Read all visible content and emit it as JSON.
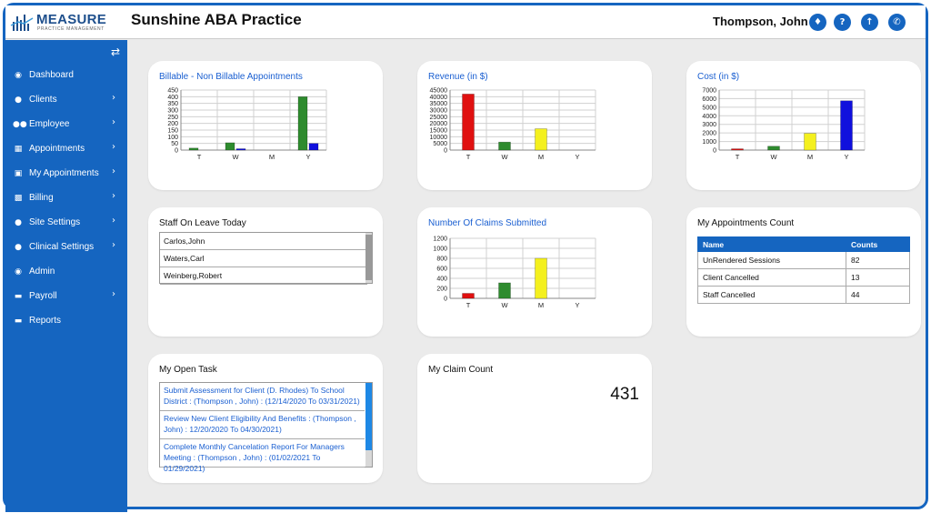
{
  "app": {
    "logo_text": "MEASURE",
    "logo_subtext": "PRACTICE MANAGEMENT",
    "title": "Sunshine ABA Practice",
    "user_name": "Thompson, John",
    "header_icons": [
      "bell-icon",
      "help-icon",
      "upload-icon",
      "phone-icon"
    ]
  },
  "sidebar": {
    "items": [
      {
        "label": "Dashboard",
        "icon": "dashboard-icon",
        "has_submenu": false
      },
      {
        "label": "Clients",
        "icon": "user-icon",
        "has_submenu": true
      },
      {
        "label": "Employee",
        "icon": "users-icon",
        "has_submenu": true
      },
      {
        "label": "Appointments",
        "icon": "calendar-icon",
        "has_submenu": true
      },
      {
        "label": "My Appointments",
        "icon": "building-icon",
        "has_submenu": true
      },
      {
        "label": "Billing",
        "icon": "money-icon",
        "has_submenu": true
      },
      {
        "label": "Site Settings",
        "icon": "user-icon",
        "has_submenu": true
      },
      {
        "label": "Clinical Settings",
        "icon": "user-icon",
        "has_submenu": true
      },
      {
        "label": "Admin",
        "icon": "user-circle-icon",
        "has_submenu": false
      },
      {
        "label": "Payroll",
        "icon": "card-icon",
        "has_submenu": true
      },
      {
        "label": "Reports",
        "icon": "card-icon",
        "has_submenu": false
      }
    ]
  },
  "cards": {
    "billable": {
      "title": "Billable - Non Billable Appointments"
    },
    "revenue": {
      "title": "Revenue (in $)"
    },
    "cost": {
      "title": "Cost (in $)"
    },
    "staff_leave": {
      "title": "Staff On Leave Today",
      "rows": [
        "Carlos,John",
        "Waters,Carl",
        "Weinberg,Robert"
      ]
    },
    "claims": {
      "title": "Number Of Claims Submitted"
    },
    "appointments_count": {
      "title": "My Appointments Count",
      "headers": [
        "Name",
        "Counts"
      ],
      "rows": [
        {
          "name": "UnRendered Sessions",
          "count": "82"
        },
        {
          "name": "Client Cancelled",
          "count": "13"
        },
        {
          "name": "Staff Cancelled",
          "count": "44"
        }
      ]
    },
    "open_task": {
      "title": "My Open Task",
      "tasks": [
        "Submit Assessment for Client (D. Rhodes) To School District : (Thompson , John) : (12/14/2020 To 03/31/2021)",
        "Review New Client Eligibility And Benefits : (Thompson , John) : 12/20/2020 To 04/30/2021)",
        "Complete Monthly Cancelation Report For Managers Meeting : (Thompson , John) : (01/02/2021 To 01/29/2021)"
      ]
    },
    "claim_count": {
      "title": "My Claim Count",
      "value": "431"
    }
  },
  "chart_data": [
    {
      "id": "billable",
      "type": "bar",
      "categories": [
        "T",
        "W",
        "M",
        "Y"
      ],
      "series": [
        {
          "color": "#2e8b2e",
          "values": [
            15,
            55,
            0,
            400
          ]
        },
        {
          "color": "#1010dd",
          "values": [
            0,
            10,
            0,
            50
          ]
        }
      ],
      "yticks": [
        "0",
        "50",
        "100",
        "150",
        "200",
        "250",
        "300",
        "350",
        "400",
        "450"
      ],
      "ylim": [
        0,
        450
      ]
    },
    {
      "id": "revenue",
      "type": "bar",
      "categories": [
        "T",
        "W",
        "M",
        "Y"
      ],
      "series": [
        {
          "colors": [
            "#e01010",
            "#2e8b2e",
            "#f4f01e",
            "#1010dd"
          ],
          "values": [
            42000,
            6000,
            16000,
            0
          ]
        }
      ],
      "yticks": [
        "0",
        "5000",
        "10000",
        "15000",
        "20000",
        "25000",
        "30000",
        "35000",
        "40000",
        "45000"
      ],
      "ylim": [
        0,
        45000
      ]
    },
    {
      "id": "cost",
      "type": "bar",
      "categories": [
        "T",
        "W",
        "M",
        "Y"
      ],
      "series": [
        {
          "colors": [
            "#e01010",
            "#2e8b2e",
            "#f4f01e",
            "#1010dd"
          ],
          "values": [
            150,
            450,
            1950,
            5750
          ]
        }
      ],
      "yticks": [
        "0",
        "1000",
        "2000",
        "3000",
        "4000",
        "5000",
        "6000",
        "7000"
      ],
      "ylim": [
        0,
        7000
      ]
    },
    {
      "id": "claims",
      "type": "bar",
      "categories": [
        "T",
        "W",
        "M",
        "Y"
      ],
      "series": [
        {
          "colors": [
            "#e01010",
            "#2e8b2e",
            "#f4f01e",
            "#1010dd"
          ],
          "values": [
            100,
            310,
            800,
            0
          ]
        }
      ],
      "yticks": [
        "0",
        "200",
        "400",
        "600",
        "800",
        "1000",
        "1200"
      ],
      "ylim": [
        0,
        1200
      ]
    }
  ]
}
